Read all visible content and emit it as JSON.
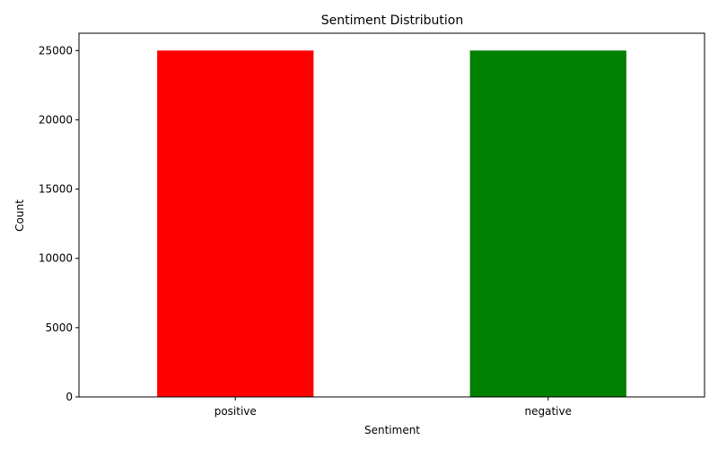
{
  "chart_data": {
    "type": "bar",
    "title": "Sentiment Distribution",
    "xlabel": "Sentiment",
    "ylabel": "Count",
    "categories": [
      "positive",
      "negative"
    ],
    "values": [
      25000,
      25000
    ],
    "colors": [
      "#ff0000",
      "#008000"
    ],
    "ylim": [
      0,
      26250
    ],
    "yticks": [
      0,
      5000,
      10000,
      15000,
      20000,
      25000
    ],
    "grid": false,
    "legend": "none"
  }
}
